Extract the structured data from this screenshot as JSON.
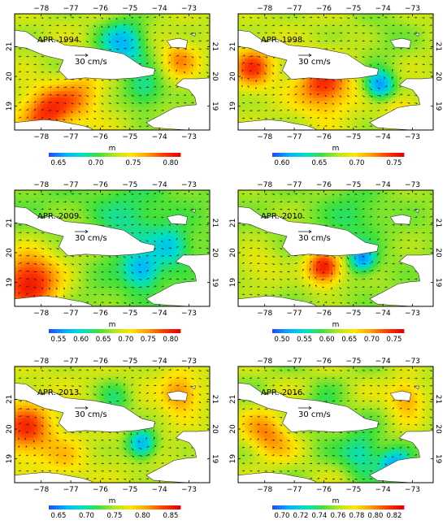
{
  "colors": {
    "land": "#ffffff",
    "coast": "#333333",
    "arrow": "#111111",
    "frame": "#000000",
    "colormap": [
      "#1e50ff",
      "#00b4ff",
      "#00e0c8",
      "#3ce13c",
      "#b4e61e",
      "#ffe600",
      "#ffa000",
      "#ff3c00",
      "#e60000"
    ]
  },
  "axes": {
    "lon_ticks": [
      "−78",
      "−77",
      "−76",
      "−75",
      "−74",
      "−73"
    ],
    "lat_ticks": [
      "21",
      "20",
      "19"
    ]
  },
  "panels": [
    {
      "title": "APR. 1994",
      "scale_label": "30 cm/s",
      "unit": "m",
      "colorbar_ticks": [
        "0.65",
        "0.70",
        "0.75",
        "0.80"
      ],
      "field_range": [
        0.61,
        0.82
      ],
      "features": [
        {
          "lon": -75.2,
          "lat": 21.1,
          "v": 0.64,
          "r": 0.8
        },
        {
          "lon": -77.8,
          "lat": 18.8,
          "v": 0.8,
          "r": 0.9
        },
        {
          "lon": -73.3,
          "lat": 20.6,
          "v": 0.77,
          "r": 0.6
        },
        {
          "lon": -76.6,
          "lat": 19.4,
          "v": 0.76,
          "r": 0.8
        },
        {
          "lon": -74.5,
          "lat": 19.5,
          "v": 0.67,
          "r": 0.7
        },
        {
          "lon": -77.9,
          "lat": 20.2,
          "v": 0.71,
          "r": 0.8
        }
      ],
      "base": 0.72
    },
    {
      "title": "APR. 1998",
      "scale_label": "30 cm/s",
      "unit": "m",
      "colorbar_ticks": [
        "0.60",
        "0.65",
        "0.70",
        "0.75"
      ],
      "field_range": [
        0.56,
        0.79
      ],
      "features": [
        {
          "lon": -78.4,
          "lat": 20.3,
          "v": 0.76,
          "r": 0.7
        },
        {
          "lon": -76.0,
          "lat": 19.7,
          "v": 0.77,
          "r": 0.9
        },
        {
          "lon": -74.1,
          "lat": 19.7,
          "v": 0.58,
          "r": 0.5
        },
        {
          "lon": -73.3,
          "lat": 18.8,
          "v": 0.72,
          "r": 0.6
        },
        {
          "lon": -74.0,
          "lat": 21.3,
          "v": 0.66,
          "r": 1.0
        }
      ],
      "base": 0.68
    },
    {
      "title": "APR. 2009",
      "scale_label": "30 cm/s",
      "unit": "m",
      "colorbar_ticks": [
        "0.55",
        "0.60",
        "0.65",
        "0.70",
        "0.75",
        "0.80"
      ],
      "field_range": [
        0.51,
        0.81
      ],
      "features": [
        {
          "lon": -78.4,
          "lat": 19.0,
          "v": 0.8,
          "r": 1.1
        },
        {
          "lon": -74.6,
          "lat": 19.4,
          "v": 0.55,
          "r": 0.6
        },
        {
          "lon": -73.6,
          "lat": 20.2,
          "v": 0.57,
          "r": 0.6
        },
        {
          "lon": -75.0,
          "lat": 21.0,
          "v": 0.6,
          "r": 1.2
        },
        {
          "lon": -76.5,
          "lat": 20.4,
          "v": 0.67,
          "r": 0.7
        }
      ],
      "base": 0.64
    },
    {
      "title": "APR. 2010",
      "scale_label": "30 cm/s",
      "unit": "m",
      "colorbar_ticks": [
        "0.50",
        "0.55",
        "0.60",
        "0.65",
        "0.70",
        "0.75"
      ],
      "field_range": [
        0.47,
        0.79
      ],
      "features": [
        {
          "lon": -76.0,
          "lat": 19.5,
          "v": 0.78,
          "r": 0.6
        },
        {
          "lon": -74.7,
          "lat": 19.8,
          "v": 0.5,
          "r": 0.45
        },
        {
          "lon": -75.0,
          "lat": 21.2,
          "v": 0.58,
          "r": 1.0
        },
        {
          "lon": -78.2,
          "lat": 19.5,
          "v": 0.66,
          "r": 0.8
        }
      ],
      "base": 0.62
    },
    {
      "title": "APR. 2013",
      "scale_label": "30 cm/s",
      "unit": "m",
      "colorbar_ticks": [
        "0.65",
        "0.70",
        "0.75",
        "0.80",
        "0.85"
      ],
      "field_range": [
        0.61,
        0.87
      ],
      "features": [
        {
          "lon": -78.5,
          "lat": 20.0,
          "v": 0.84,
          "r": 0.9
        },
        {
          "lon": -74.6,
          "lat": 19.5,
          "v": 0.64,
          "r": 0.5
        },
        {
          "lon": -73.3,
          "lat": 21.2,
          "v": 0.82,
          "r": 0.6
        },
        {
          "lon": -75.5,
          "lat": 21.0,
          "v": 0.7,
          "r": 0.6
        },
        {
          "lon": -77.2,
          "lat": 19.0,
          "v": 0.78,
          "r": 0.7
        }
      ],
      "base": 0.75
    },
    {
      "title": "APR. 2016",
      "scale_label": "30 cm/s",
      "unit": "m",
      "colorbar_ticks": [
        "0.70",
        "0.72",
        "0.74",
        "0.76",
        "0.78",
        "0.80",
        "0.82"
      ],
      "field_range": [
        0.69,
        0.83
      ],
      "features": [
        {
          "lon": -77.9,
          "lat": 19.8,
          "v": 0.8,
          "r": 0.8
        },
        {
          "lon": -76.0,
          "lat": 20.5,
          "v": 0.74,
          "r": 0.7
        },
        {
          "lon": -74.7,
          "lat": 19.2,
          "v": 0.72,
          "r": 0.7
        },
        {
          "lon": -73.2,
          "lat": 21.1,
          "v": 0.8,
          "r": 0.6
        },
        {
          "lon": -73.6,
          "lat": 18.8,
          "v": 0.71,
          "r": 0.5
        }
      ],
      "base": 0.76
    }
  ]
}
